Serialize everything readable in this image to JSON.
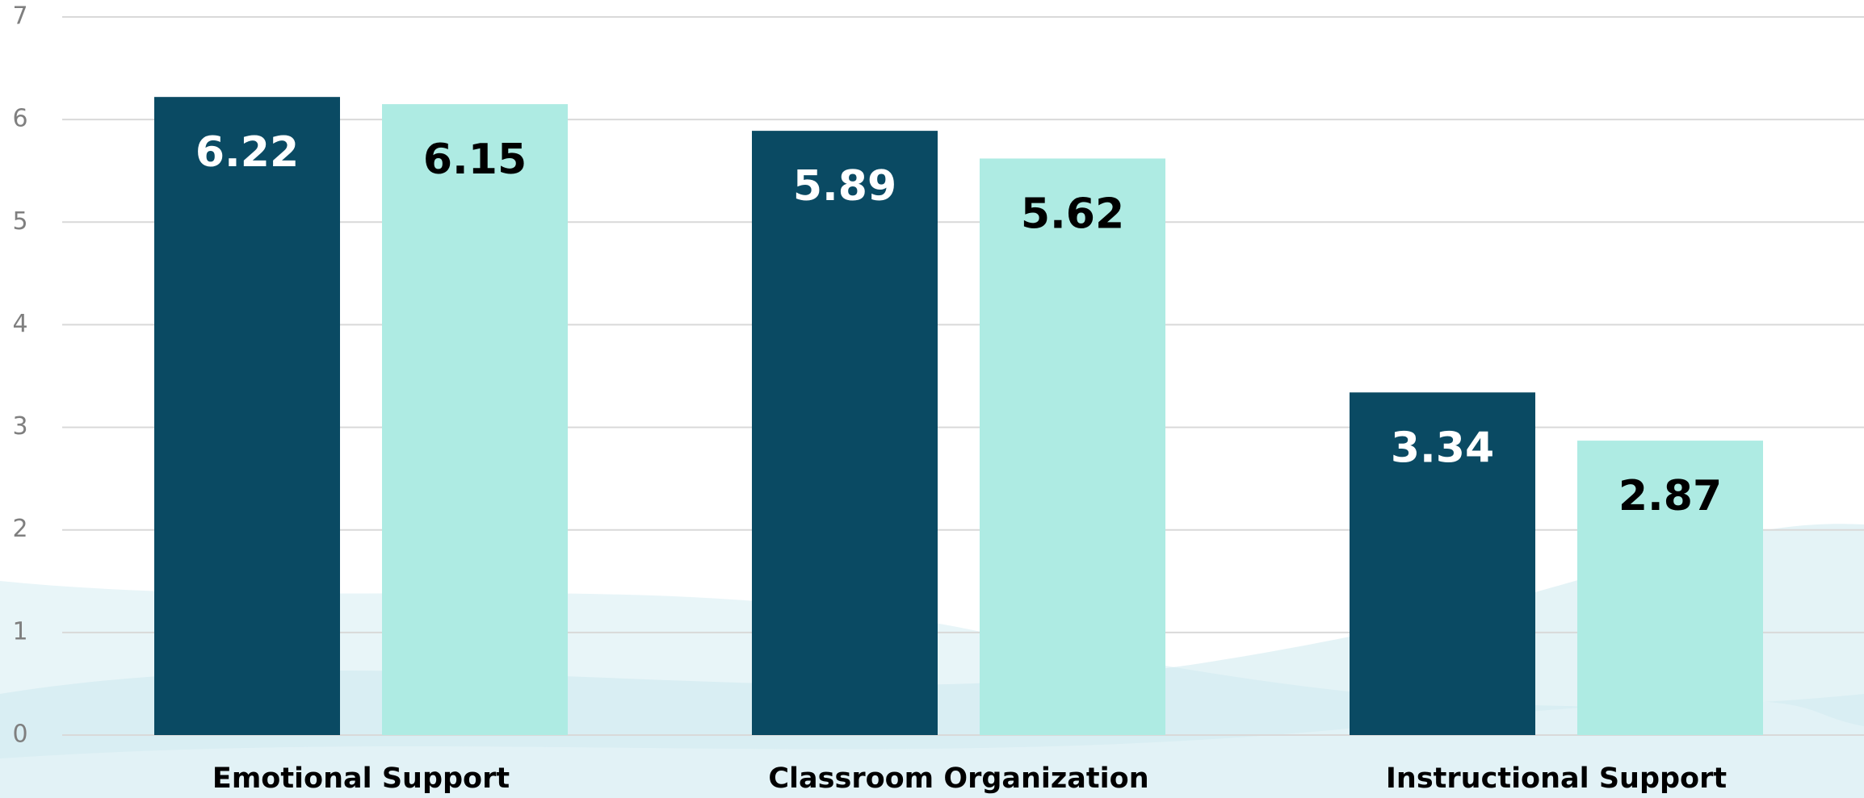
{
  "chart_data": {
    "type": "bar",
    "categories": [
      "Emotional Support",
      "Classroom Organization",
      "Instructional Support"
    ],
    "series": [
      {
        "color": "#0a4a63",
        "label_color": "#ffffff",
        "values": [
          6.22,
          5.89,
          3.34
        ]
      },
      {
        "color": "#aeebe3",
        "label_color": "#000000",
        "values": [
          6.15,
          5.62,
          2.87
        ]
      }
    ],
    "ylim": [
      0,
      7
    ],
    "yticks": [
      0,
      1,
      2,
      3,
      4,
      5,
      6,
      7
    ],
    "grid": true
  }
}
